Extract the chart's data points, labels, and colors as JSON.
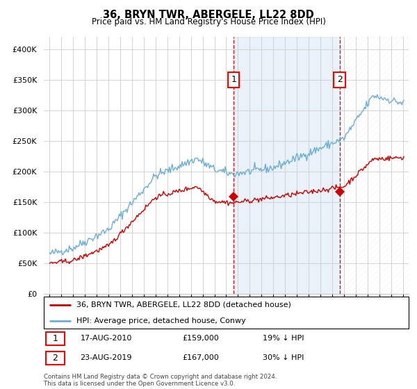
{
  "title": "36, BRYN TWR, ABERGELE, LL22 8DD",
  "subtitle": "Price paid vs. HM Land Registry's House Price Index (HPI)",
  "legend_line1": "36, BRYN TWR, ABERGELE, LL22 8DD (detached house)",
  "legend_line2": "HPI: Average price, detached house, Conwy",
  "annotation1": {
    "label": "1",
    "date": "17-AUG-2010",
    "price": "£159,000",
    "hpi": "19% ↓ HPI",
    "x_year": 2010.63
  },
  "annotation2": {
    "label": "2",
    "date": "23-AUG-2019",
    "price": "£167,000",
    "hpi": "30% ↓ HPI",
    "x_year": 2019.63
  },
  "footer": "Contains HM Land Registry data © Crown copyright and database right 2024.\nThis data is licensed under the Open Government Licence v3.0.",
  "hpi_color": "#6baed6",
  "price_color": "#cc0000",
  "dashed_color": "#cc0000",
  "shade_color": "#ddeeff",
  "background_color": "#ffffff",
  "grid_color": "#cccccc",
  "ylim": [
    0,
    420000
  ],
  "yticks": [
    0,
    50000,
    100000,
    150000,
    200000,
    250000,
    300000,
    350000,
    400000
  ],
  "xlim_start": 1994.5,
  "xlim_end": 2025.5,
  "sale1_x": 2010.63,
  "sale1_y": 159000,
  "sale2_x": 2019.63,
  "sale2_y": 167000
}
